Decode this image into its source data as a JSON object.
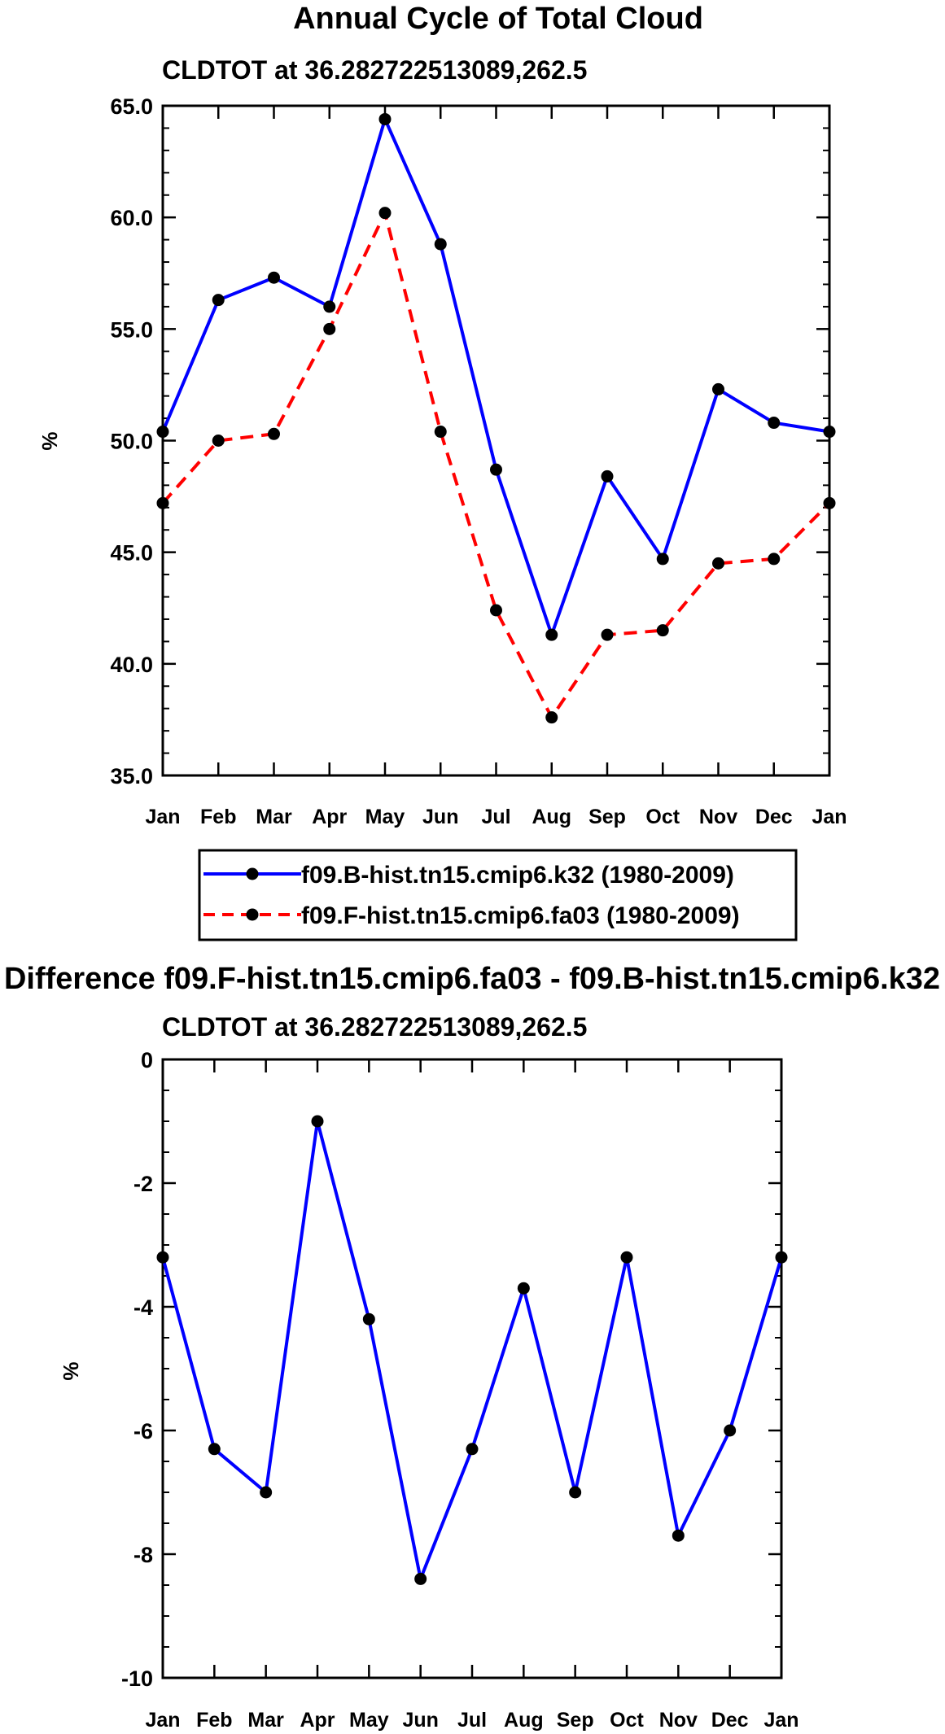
{
  "chart_data": [
    {
      "type": "line",
      "title": "Annual Cycle of Total Cloud",
      "subtitle": "CLDTOT at 36.282722513089,262.5",
      "ylabel": "%",
      "xlabel": "",
      "ylim": [
        35.0,
        65.0
      ],
      "yticks": [
        "35.0",
        "40.0",
        "45.0",
        "50.0",
        "55.0",
        "60.0",
        "65.0"
      ],
      "categories": [
        "Jan",
        "Feb",
        "Mar",
        "Apr",
        "May",
        "Jun",
        "Jul",
        "Aug",
        "Sep",
        "Oct",
        "Nov",
        "Dec",
        "Jan"
      ],
      "legend_position": "below",
      "series": [
        {
          "name": "f09.B-hist.tn15.cmip6.k32 (1980-2009)",
          "color": "#0000ff",
          "dash": "solid",
          "values": [
            50.4,
            56.3,
            57.3,
            56.0,
            64.4,
            58.8,
            48.7,
            41.3,
            48.4,
            44.7,
            52.3,
            50.8,
            50.4
          ]
        },
        {
          "name": "f09.F-hist.tn15.cmip6.fa03 (1980-2009)",
          "color": "#ff0000",
          "dash": "dashed",
          "values": [
            47.2,
            50.0,
            50.3,
            55.0,
            60.2,
            50.4,
            42.4,
            37.6,
            41.3,
            41.5,
            44.5,
            44.7,
            47.2
          ]
        }
      ]
    },
    {
      "type": "line",
      "title": "Difference f09.F-hist.tn15.cmip6.fa03 - f09.B-hist.tn15.cmip6.k32",
      "subtitle": "CLDTOT at 36.282722513089,262.5",
      "ylabel": "%",
      "xlabel": "",
      "ylim": [
        -10,
        0
      ],
      "yticks": [
        "-10",
        "-8",
        "-6",
        "-4",
        "-2",
        "0"
      ],
      "categories": [
        "Jan",
        "Feb",
        "Mar",
        "Apr",
        "May",
        "Jun",
        "Jul",
        "Aug",
        "Sep",
        "Oct",
        "Nov",
        "Dec",
        "Jan"
      ],
      "series": [
        {
          "name": "Difference",
          "color": "#0000ff",
          "dash": "solid",
          "values": [
            -3.2,
            -6.3,
            -7.0,
            -1.0,
            -4.2,
            -8.4,
            -6.3,
            -3.7,
            -7.0,
            -3.2,
            -7.7,
            -6.0,
            -3.2
          ]
        }
      ]
    }
  ]
}
